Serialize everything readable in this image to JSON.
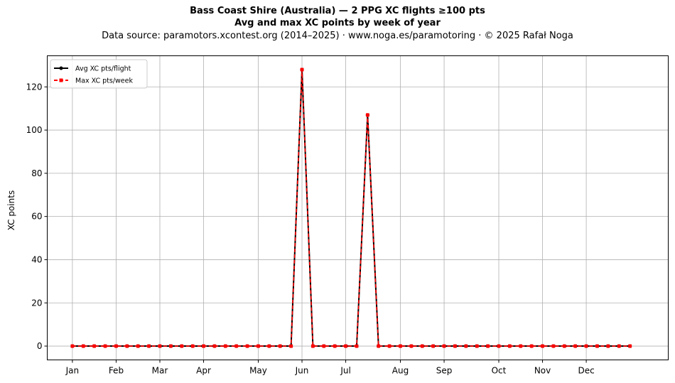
{
  "title_line1": "Bass Coast Shire (Australia)  —  2 PPG XC flights ≥100 pts",
  "title_line2": "Avg and max XC points by week of year",
  "subtitle": "Data source: paramotors.xcontest.org (2014–2025)  ·  www.noga.es/paramotoring  ·  © 2025 Rafał Noga",
  "chart_data": {
    "type": "line",
    "title": "Bass Coast Shire (Australia)  —  2 PPG XC flights ≥100 pts",
    "subtitle": "Avg and max XC points by week of year",
    "xlabel": "",
    "ylabel": "XC points",
    "x_axis": "week of year",
    "xlim": [
      -2.3,
      54.5
    ],
    "ylim": [
      -6.4,
      134.4
    ],
    "grid": true,
    "legend_position": "top-left",
    "month_ticks": [
      {
        "label": "Jan",
        "week": 0
      },
      {
        "label": "Feb",
        "week": 4
      },
      {
        "label": "Mar",
        "week": 8
      },
      {
        "label": "Apr",
        "week": 12
      },
      {
        "label": "May",
        "week": 17
      },
      {
        "label": "Jun",
        "week": 21
      },
      {
        "label": "Jul",
        "week": 25
      },
      {
        "label": "Aug",
        "week": 30
      },
      {
        "label": "Sep",
        "week": 34
      },
      {
        "label": "Oct",
        "week": 39
      },
      {
        "label": "Nov",
        "week": 43
      },
      {
        "label": "Dec",
        "week": 47
      }
    ],
    "y_ticks": [
      0,
      20,
      40,
      60,
      80,
      100,
      120
    ],
    "x": [
      0,
      1,
      2,
      3,
      4,
      5,
      6,
      7,
      8,
      9,
      10,
      11,
      12,
      13,
      14,
      15,
      16,
      17,
      18,
      19,
      20,
      21,
      22,
      23,
      24,
      25,
      26,
      27,
      28,
      29,
      30,
      31,
      32,
      33,
      34,
      35,
      36,
      37,
      38,
      39,
      40,
      41,
      42,
      43,
      44,
      45,
      46,
      47,
      48,
      49,
      50,
      51
    ],
    "series": [
      {
        "name": "Avg XC pts/flight",
        "color": "#000000",
        "style": "solid-dot",
        "values": [
          0,
          0,
          0,
          0,
          0,
          0,
          0,
          0,
          0,
          0,
          0,
          0,
          0,
          0,
          0,
          0,
          0,
          0,
          0,
          0,
          0,
          128,
          0,
          0,
          0,
          0,
          0,
          107,
          0,
          0,
          0,
          0,
          0,
          0,
          0,
          0,
          0,
          0,
          0,
          0,
          0,
          0,
          0,
          0,
          0,
          0,
          0,
          0,
          0,
          0,
          0,
          0
        ]
      },
      {
        "name": "Max XC pts/week",
        "color": "#ff0000",
        "style": "dashed-square",
        "values": [
          0,
          0,
          0,
          0,
          0,
          0,
          0,
          0,
          0,
          0,
          0,
          0,
          0,
          0,
          0,
          0,
          0,
          0,
          0,
          0,
          0,
          128,
          0,
          0,
          0,
          0,
          0,
          107,
          0,
          0,
          0,
          0,
          0,
          0,
          0,
          0,
          0,
          0,
          0,
          0,
          0,
          0,
          0,
          0,
          0,
          0,
          0,
          0,
          0,
          0,
          0,
          0
        ]
      }
    ]
  }
}
